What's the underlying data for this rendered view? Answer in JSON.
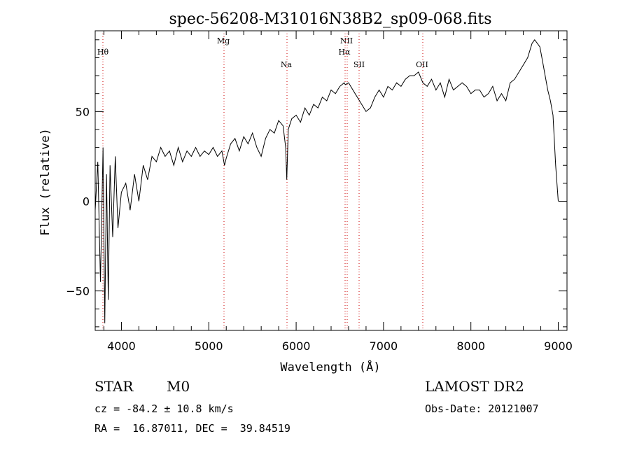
{
  "chart_data": {
    "type": "line",
    "title": "spec-56208-M31016N38B2_sp09-068.fits",
    "xlabel": "Wavelength (Å)",
    "ylabel": "Flux (relative)",
    "xlim": [
      3700,
      9100
    ],
    "ylim": [
      -72,
      95
    ],
    "xticks": [
      4000,
      5000,
      6000,
      7000,
      8000,
      9000
    ],
    "yticks": [
      -50,
      0,
      50
    ],
    "line_color": "#000000",
    "marker_color": "#cc0000",
    "spectral_lines": [
      {
        "name": "Hθ",
        "wavelength": 3797
      },
      {
        "name": "Mg",
        "wavelength": 5183
      },
      {
        "name": "Na",
        "wavelength": 5893
      },
      {
        "name": "NII",
        "wavelength": 6583
      },
      {
        "name": "Hα",
        "wavelength": 6563
      },
      {
        "name": "SII",
        "wavelength": 6717
      },
      {
        "name": "OII",
        "wavelength": 7325
      }
    ],
    "series": [
      {
        "x": [
          3700,
          3730,
          3760,
          3790,
          3810,
          3830,
          3850,
          3870,
          3900,
          3930,
          3960,
          4000,
          4050,
          4100,
          4150,
          4200,
          4250,
          4300,
          4350,
          4400,
          4450,
          4500,
          4550,
          4600,
          4650,
          4700,
          4750,
          4800,
          4850,
          4900,
          4950,
          5000,
          5050,
          5100,
          5150,
          5180,
          5200,
          5250,
          5300,
          5350,
          5400,
          5450,
          5500,
          5550,
          5600,
          5650,
          5700,
          5750,
          5800,
          5850,
          5880,
          5893,
          5910,
          5950,
          6000,
          6050,
          6100,
          6150,
          6200,
          6250,
          6300,
          6350,
          6400,
          6450,
          6500,
          6550,
          6563,
          6600,
          6650,
          6700,
          6750,
          6800,
          6850,
          6900,
          6950,
          7000,
          7050,
          7100,
          7150,
          7200,
          7250,
          7300,
          7350,
          7400,
          7450,
          7500,
          7550,
          7600,
          7650,
          7700,
          7750,
          7800,
          7850,
          7900,
          7950,
          8000,
          8050,
          8100,
          8150,
          8200,
          8250,
          8300,
          8350,
          8400,
          8450,
          8500,
          8550,
          8600,
          8650,
          8700,
          8730,
          8760,
          8790,
          8820,
          8850,
          8880,
          8910,
          8940,
          8970,
          9000
        ],
        "values": [
          -5,
          22,
          -45,
          30,
          -68,
          15,
          -55,
          20,
          -20,
          25,
          -15,
          5,
          10,
          -5,
          15,
          0,
          20,
          12,
          25,
          22,
          30,
          25,
          28,
          20,
          30,
          22,
          28,
          25,
          30,
          25,
          28,
          26,
          30,
          25,
          28,
          20,
          24,
          32,
          35,
          28,
          36,
          32,
          38,
          30,
          25,
          35,
          40,
          38,
          45,
          42,
          30,
          12,
          40,
          46,
          48,
          44,
          52,
          48,
          54,
          52,
          58,
          56,
          62,
          60,
          64,
          66,
          65,
          66,
          62,
          58,
          54,
          50,
          52,
          58,
          62,
          58,
          64,
          62,
          66,
          64,
          68,
          70,
          70,
          72,
          66,
          64,
          68,
          62,
          66,
          58,
          68,
          62,
          64,
          66,
          64,
          60,
          62,
          62,
          58,
          60,
          64,
          56,
          60,
          56,
          66,
          68,
          72,
          76,
          80,
          88,
          90,
          88,
          86,
          78,
          70,
          62,
          56,
          48,
          20,
          0
        ]
      }
    ]
  },
  "footer": {
    "object_type": "STAR",
    "subclass": "M0",
    "survey": "LAMOST DR2",
    "cz": "cz = -84.2 ± 10.8 km/s",
    "obs_date": "Obs-Date: 20121007",
    "coords": "RA =  16.87011, DEC =  39.84519"
  }
}
